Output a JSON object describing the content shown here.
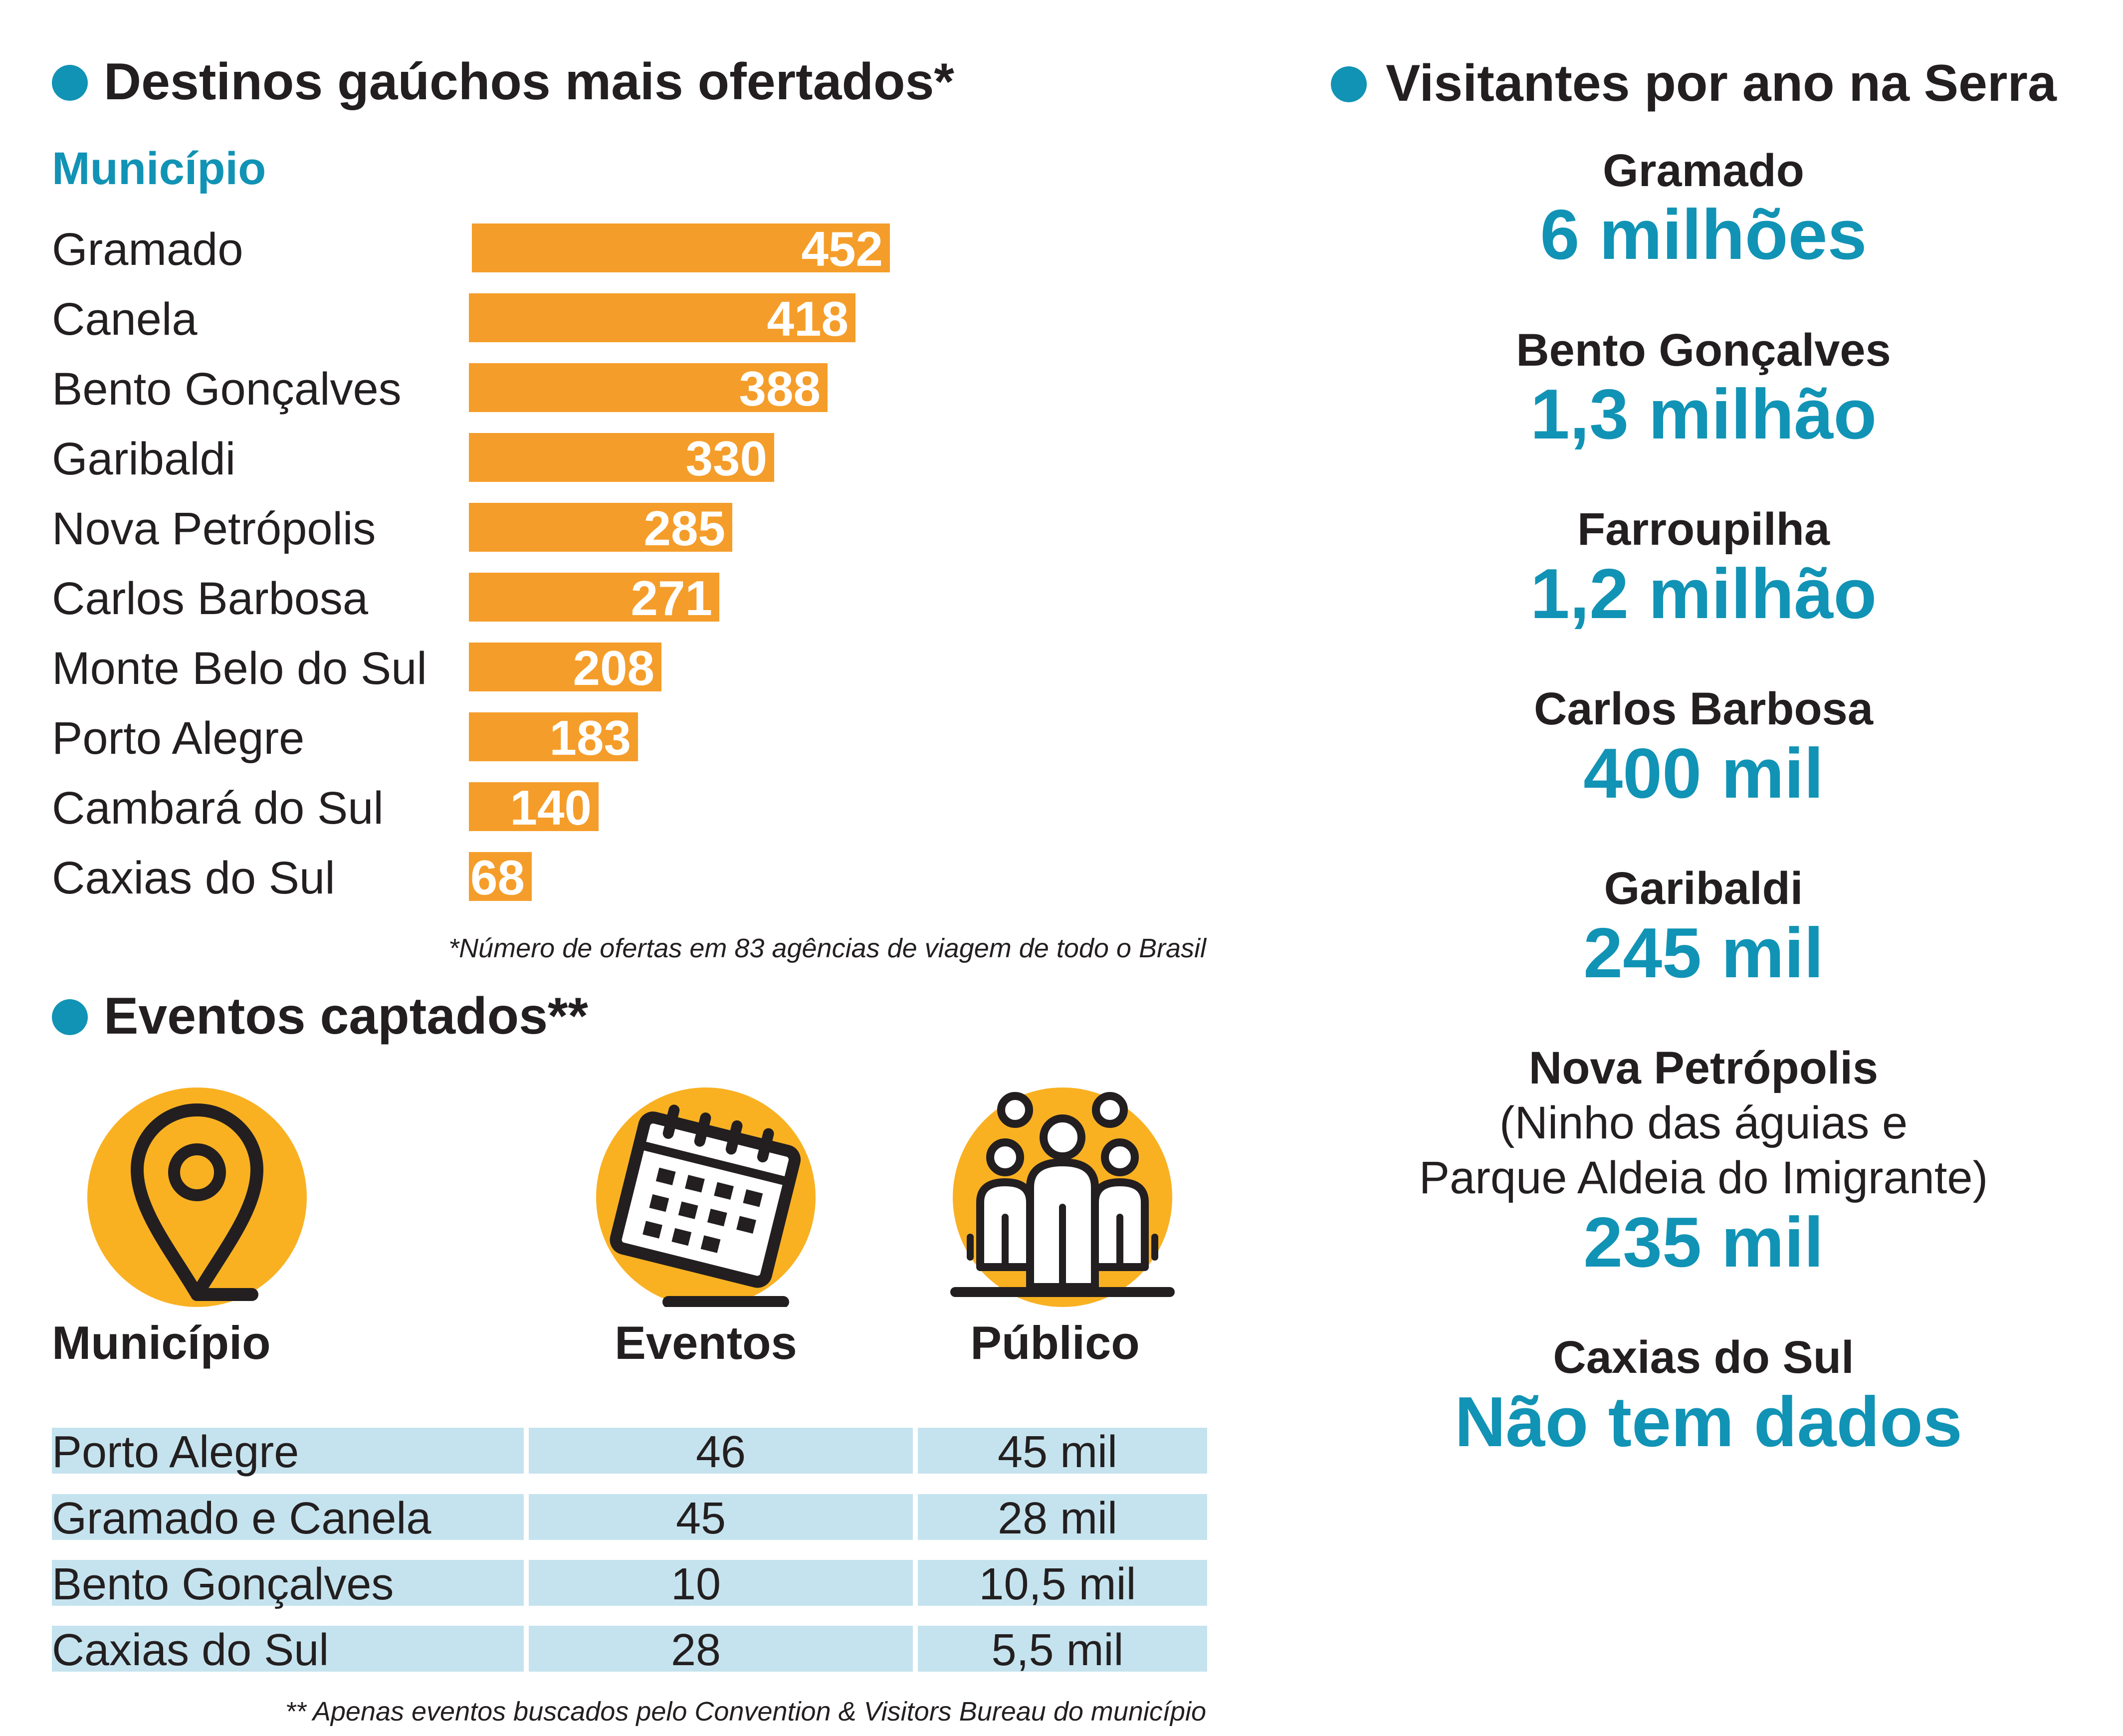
{
  "destinos": {
    "title": "Destinos gaúchos mais ofertados*",
    "subtitle": "Município",
    "footnote": "*Número de ofertas em 83 agências de viagem de todo o Brasil"
  },
  "chart_data": {
    "type": "bar",
    "orientation": "horizontal",
    "title": "Destinos gaúchos mais ofertados*",
    "xlabel": "",
    "ylabel": "Município",
    "categories": [
      "Gramado",
      "Canela",
      "Bento Gonçalves",
      "Garibaldi",
      "Nova Petrópolis",
      "Carlos Barbosa",
      "Monte Belo do Sul",
      "Porto Alegre",
      "Cambará do Sul",
      "Caxias do Sul"
    ],
    "values": [
      452,
      418,
      388,
      330,
      285,
      271,
      208,
      183,
      140,
      68
    ],
    "grid": false,
    "legend": "none",
    "bar_color": "#f59d2a"
  },
  "eventos": {
    "title": "Eventos captados**",
    "col_municipio": "Município",
    "col_eventos": "Eventos",
    "col_publico": "Público",
    "rows": [
      {
        "municipio": "Porto Alegre",
        "eventos": "46",
        "publico": "45 mil"
      },
      {
        "municipio": "Gramado e Canela",
        "eventos": "45",
        "publico": "28 mil"
      },
      {
        "municipio": "Bento Gonçalves",
        "eventos": "10",
        "publico": "10,5 mil"
      },
      {
        "municipio": "Caxias do Sul",
        "eventos": "28",
        "publico": "5,5 mil"
      }
    ],
    "footnote": "** Apenas eventos buscados pelo Convention & Visitors Bureau do município",
    "icons": [
      "map-pin-icon",
      "calendar-icon",
      "people-group-icon"
    ]
  },
  "visitantes": {
    "title": "Visitantes por ano na Serra",
    "items": [
      {
        "name": "Gramado",
        "value": "6 milhões"
      },
      {
        "name": "Bento Gonçalves",
        "value": "1,3 milhão"
      },
      {
        "name": "Farroupilha",
        "value": "1,2 milhão"
      },
      {
        "name": "Carlos Barbosa",
        "value": "400 mil"
      },
      {
        "name": "Garibaldi",
        "value": "245 mil"
      },
      {
        "name": "Nova Petrópolis",
        "sub1": "(Ninho das águias e",
        "sub2": "Parque Aldeia do Imigrante)",
        "value": "235 mil"
      },
      {
        "name": "Caxias do Sul",
        "value": "Não tem dados"
      }
    ]
  },
  "colors": {
    "accent": "#1193b5",
    "bar": "#f59d2a",
    "icon_circle": "#f9b122",
    "table_cell": "#c5e3ee",
    "text": "#231f20"
  }
}
